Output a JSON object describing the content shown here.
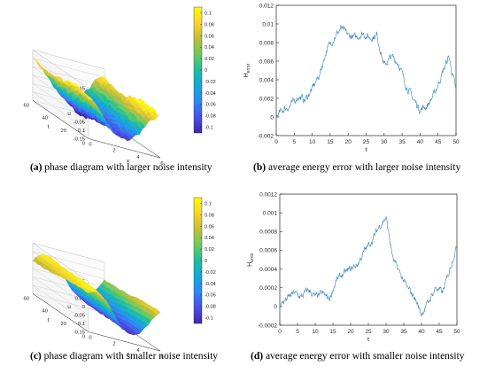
{
  "captions": [
    {
      "tag": "(a)",
      "text": " phase diagram with larger noise intensity"
    },
    {
      "tag": "(b)",
      "text": " average energy error with larger noise intensity"
    },
    {
      "tag": "(c)",
      "text": " phase diagram with smaller noise intensity"
    },
    {
      "tag": "(d)",
      "text": " average energy error with smaller noise intensity"
    }
  ],
  "colors": {
    "line": "#2f7fc1",
    "axis": "#262626",
    "grid": "#c8c8c8",
    "colormap": [
      "#3e26a8",
      "#4a4fe8",
      "#2f86f5",
      "#12a8d8",
      "#1fbda0",
      "#6cca5e",
      "#c4bd36",
      "#f6d62a",
      "#f9fb0e"
    ]
  },
  "chart_data": [
    {
      "id": "a",
      "type": "surface",
      "zlabel": "u",
      "xlabel": "x",
      "ylabel": "t",
      "x_ticks": [
        "0",
        "2",
        "4",
        "6"
      ],
      "t_ticks": [
        "0",
        "20",
        "40",
        "60"
      ],
      "z_ticks": [
        "-0.15",
        "-0.1",
        "-0.05",
        "0",
        "0.05",
        "0.1",
        "0.15"
      ],
      "zlim": [
        -0.15,
        0.15
      ],
      "colorbar_ticks": [
        "0.1",
        "0.08",
        "0.06",
        "0.04",
        "0.02",
        "0",
        "-0.02",
        "-0.04",
        "-0.06",
        "-0.08",
        "-0.1"
      ],
      "clim": [
        -0.11,
        0.11
      ],
      "surface": {
        "amplitude": 0.1,
        "noise": 0.012,
        "drift": 0.02
      }
    },
    {
      "id": "b",
      "type": "line",
      "xlabel": "t",
      "ylabel": "H_error",
      "ylabel_main": "H",
      "ylabel_sub": "error",
      "xlim": [
        0,
        50
      ],
      "ylim": [
        -0.002,
        0.012
      ],
      "x_ticks": [
        "0",
        "5",
        "10",
        "15",
        "20",
        "25",
        "30",
        "35",
        "40",
        "45",
        "50"
      ],
      "y_ticks": [
        "-0.002",
        "0",
        "0.002",
        "0.004",
        "0.006",
        "0.008",
        "0.01",
        "0.012"
      ],
      "x": [
        0,
        2,
        4,
        6,
        8,
        10,
        12,
        14,
        16,
        18,
        20,
        22,
        24,
        26,
        28,
        30,
        32,
        34,
        36,
        38,
        40,
        42,
        44,
        46,
        48,
        50
      ],
      "y": [
        0.0001,
        0.0008,
        0.0012,
        0.0022,
        0.0018,
        0.003,
        0.0045,
        0.0072,
        0.0085,
        0.0095,
        0.0088,
        0.0085,
        0.009,
        0.0085,
        0.0088,
        0.0055,
        0.0065,
        0.0058,
        0.0035,
        0.002,
        0.0008,
        0.0012,
        0.0025,
        0.0045,
        0.0065,
        0.0028
      ],
      "noise": 0.00045
    },
    {
      "id": "c",
      "type": "surface",
      "zlabel": "u",
      "xlabel": "x",
      "ylabel": "t",
      "x_ticks": [
        "0",
        "2",
        "4",
        "6"
      ],
      "t_ticks": [
        "0",
        "20",
        "40",
        "60"
      ],
      "z_ticks": [
        "-0.15",
        "-0.1",
        "-0.05",
        "0",
        "0.05",
        "0.1",
        "0.15"
      ],
      "zlim": [
        -0.15,
        0.15
      ],
      "colorbar_ticks": [
        "0.1",
        "0.08",
        "0.06",
        "0.04",
        "0.02",
        "0",
        "-0.02",
        "-0.04",
        "-0.06",
        "-0.08",
        "-0.1"
      ],
      "clim": [
        -0.11,
        0.11
      ],
      "surface": {
        "amplitude": 0.1,
        "noise": 0.004,
        "drift": 0.005
      }
    },
    {
      "id": "d",
      "type": "line",
      "xlabel": "t",
      "ylabel": "H_error",
      "ylabel_main": "H",
      "ylabel_sub": "error",
      "xlim": [
        0,
        50
      ],
      "ylim": [
        -0.0002,
        0.0012
      ],
      "x_ticks": [
        "0",
        "5",
        "10",
        "15",
        "20",
        "25",
        "30",
        "35",
        "40",
        "45",
        "50"
      ],
      "y_ticks": [
        "-0.0002",
        "0",
        "0.0002",
        "0.0004",
        "0.0006",
        "0.0008",
        "0.001",
        "0.0012"
      ],
      "x": [
        0,
        2,
        4,
        6,
        8,
        10,
        12,
        14,
        16,
        18,
        20,
        22,
        24,
        26,
        28,
        30,
        32,
        34,
        36,
        38,
        40,
        42,
        44,
        46,
        48,
        50
      ],
      "y": [
        2e-05,
        8e-05,
        0.00015,
        0.0001,
        0.00018,
        0.0001,
        0.00014,
        8e-05,
        0.00028,
        0.00035,
        0.0004,
        0.00045,
        0.0006,
        0.0007,
        0.00085,
        0.00095,
        0.0005,
        0.00035,
        0.0002,
        0.0001,
        -8e-05,
        5e-05,
        0.0002,
        0.00015,
        0.0004,
        0.00065
      ],
      "noise": 4e-05
    }
  ]
}
